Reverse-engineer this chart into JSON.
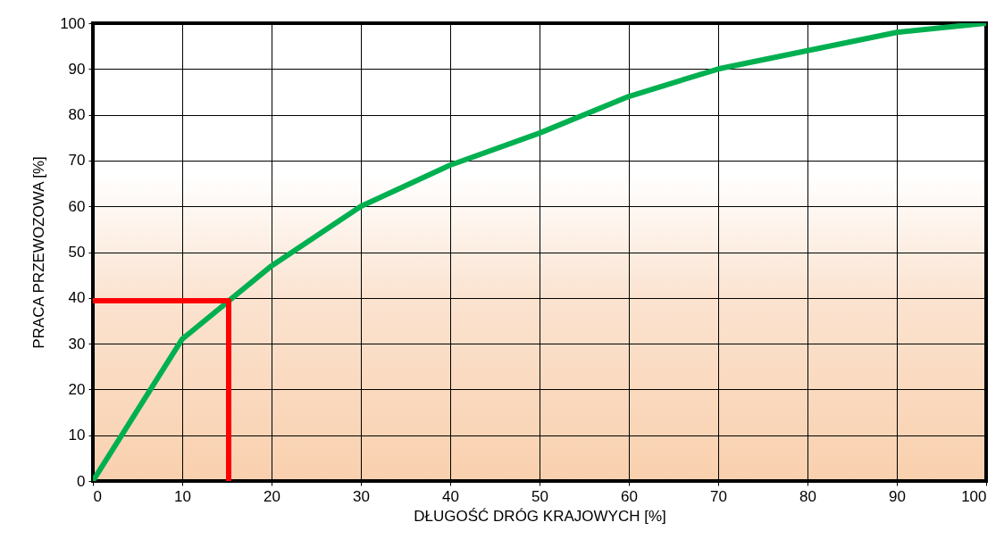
{
  "chart_data": {
    "type": "line",
    "xlabel": "DŁUGOŚĆ DRÓG KRAJOWYCH [%]",
    "ylabel": "PRACA  PRZEWOZOWA [%]",
    "series": [
      {
        "color": "#00b050",
        "x": [
          0,
          10,
          20,
          30,
          40,
          50,
          60,
          70,
          80,
          90,
          100
        ],
        "values": [
          0,
          31,
          47,
          60,
          69,
          76,
          84,
          90,
          94,
          98,
          100
        ]
      },
      {
        "color": "#ff0000",
        "x": [
          0,
          15.2,
          15.2
        ],
        "values": [
          39.4,
          39.4,
          0
        ]
      }
    ],
    "xlim": [
      0,
      100
    ],
    "xticks": [
      0,
      10,
      20,
      30,
      40,
      50,
      60,
      70,
      80,
      90,
      100
    ],
    "ylim": [
      0,
      100
    ],
    "yticks": [
      0,
      10,
      20,
      30,
      40,
      50,
      60,
      70,
      80,
      90,
      100
    ],
    "grid": true,
    "marker": "none",
    "line_style": "solid"
  }
}
